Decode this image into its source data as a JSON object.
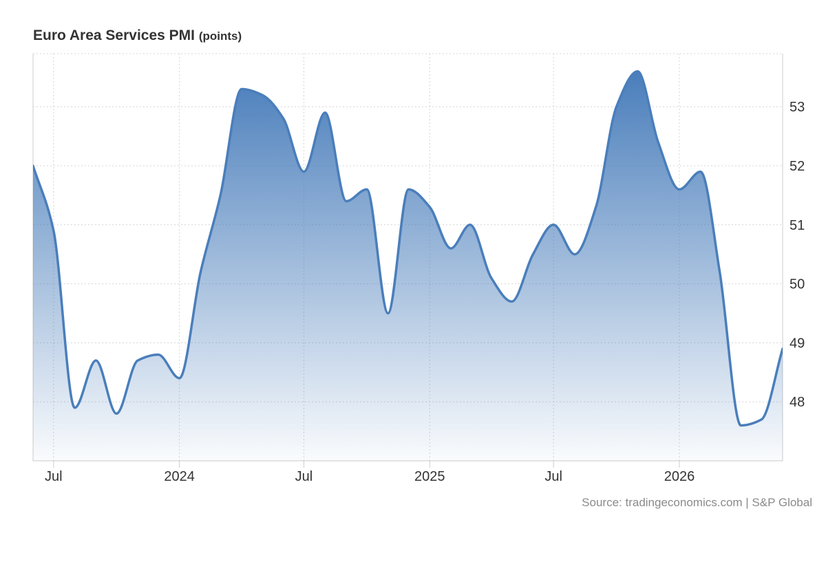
{
  "header": {
    "title": "Euro Area Services PMI",
    "unit": "(points)"
  },
  "footer": {
    "source": "Source: tradingeconomics.com | S&P Global"
  },
  "chart_data": {
    "type": "area",
    "title": "Euro Area Services PMI",
    "unit": "(points)",
    "xlabel": "",
    "ylabel": "",
    "ylim": [
      47.0,
      53.9
    ],
    "yticks": [
      48,
      49,
      50,
      51,
      52,
      53
    ],
    "ytick_labels": [
      "48",
      "49",
      "50",
      "51",
      "52",
      "53"
    ],
    "y_axis_side": "right",
    "x_range": [
      "2023-06-01",
      "2026-06-01"
    ],
    "xticks": [
      {
        "date": "2023-07-01",
        "label": "Jul"
      },
      {
        "date": "2024-01-01",
        "label": "2024"
      },
      {
        "date": "2024-07-01",
        "label": "Jul"
      },
      {
        "date": "2025-01-01",
        "label": "2025"
      },
      {
        "date": "2025-07-01",
        "label": "Jul"
      },
      {
        "date": "2026-01-01",
        "label": "2026"
      }
    ],
    "grid": true,
    "legend": "none",
    "colors": {
      "line": "#4a7ebb",
      "fill_top": "#4a7ebb",
      "fill_bottom": "#ffffff",
      "grid": "#d4d4d4",
      "axis": "#cccccc"
    },
    "series": [
      {
        "x": [
          "2023-06-01",
          "2023-07-01",
          "2023-08-01",
          "2023-09-01",
          "2023-10-01",
          "2023-11-01",
          "2023-12-01",
          "2024-01-01",
          "2024-02-01",
          "2024-03-01",
          "2024-04-01",
          "2024-05-01",
          "2024-06-01",
          "2024-07-01",
          "2024-08-01",
          "2024-09-01",
          "2024-10-01",
          "2024-11-01",
          "2024-12-01",
          "2025-01-01",
          "2025-02-01",
          "2025-03-01",
          "2025-04-01",
          "2025-05-01",
          "2025-06-01",
          "2025-07-01",
          "2025-08-01",
          "2025-09-01",
          "2025-10-01",
          "2025-11-01",
          "2025-12-01",
          "2026-01-01",
          "2026-02-01",
          "2026-03-01",
          "2026-04-01",
          "2026-05-01",
          "2026-06-01"
        ],
        "values": [
          52.0,
          50.9,
          47.9,
          48.7,
          47.8,
          48.7,
          48.8,
          48.4,
          50.2,
          51.5,
          53.3,
          53.2,
          52.8,
          51.9,
          52.9,
          51.4,
          51.6,
          49.5,
          51.6,
          51.3,
          50.6,
          51.0,
          50.1,
          49.7,
          50.5,
          51.0,
          50.5,
          51.3,
          53.0,
          53.6,
          52.4,
          51.6,
          51.9,
          50.2,
          47.6,
          47.7,
          48.9
        ]
      }
    ]
  }
}
